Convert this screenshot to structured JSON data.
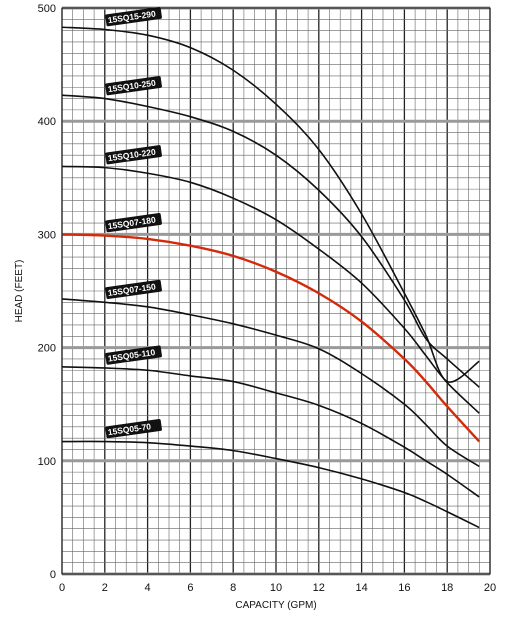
{
  "chart_data": {
    "type": "line",
    "title": "",
    "xlabel": "CAPACITY (GPM)",
    "ylabel": "HEAD (FEET)",
    "xlim": [
      0,
      20
    ],
    "ylim": [
      0,
      500
    ],
    "x_ticks": [
      0,
      2,
      4,
      6,
      8,
      10,
      12,
      14,
      16,
      18,
      20
    ],
    "y_ticks": [
      0,
      100,
      200,
      300,
      400,
      500
    ],
    "grid": true,
    "highlight_color": "#d42a0c",
    "line_color": "#111111",
    "series": [
      {
        "name": "15SQ15-290",
        "color": "#111111",
        "points": [
          [
            0,
            483
          ],
          [
            2,
            481
          ],
          [
            4,
            476
          ],
          [
            6,
            465
          ],
          [
            8,
            445
          ],
          [
            10,
            415
          ],
          [
            12,
            375
          ],
          [
            14,
            318
          ],
          [
            16,
            248
          ],
          [
            17,
            211
          ],
          [
            18,
            170
          ],
          [
            19.5,
            188
          ]
        ]
      },
      {
        "name": "15SQ10-250",
        "color": "#111111",
        "points": [
          [
            0,
            423
          ],
          [
            2,
            420
          ],
          [
            4,
            413
          ],
          [
            6,
            404
          ],
          [
            8,
            391
          ],
          [
            10,
            370
          ],
          [
            12,
            339
          ],
          [
            14,
            298
          ],
          [
            16,
            242
          ],
          [
            17,
            208
          ],
          [
            18,
            190
          ],
          [
            19.5,
            165
          ]
        ]
      },
      {
        "name": "15SQ10-220",
        "color": "#111111",
        "points": [
          [
            0,
            360
          ],
          [
            2,
            359
          ],
          [
            4,
            354
          ],
          [
            6,
            346
          ],
          [
            8,
            332
          ],
          [
            10,
            313
          ],
          [
            12,
            287
          ],
          [
            14,
            257
          ],
          [
            16,
            217
          ],
          [
            17,
            193
          ],
          [
            18,
            169
          ],
          [
            19.5,
            142
          ]
        ]
      },
      {
        "name": "15SQ07-180",
        "color": "#d42a0c",
        "points": [
          [
            0,
            300
          ],
          [
            2,
            299
          ],
          [
            4,
            296
          ],
          [
            6,
            290
          ],
          [
            8,
            281
          ],
          [
            10,
            267
          ],
          [
            12,
            248
          ],
          [
            14,
            223
          ],
          [
            16,
            190
          ],
          [
            17,
            170
          ],
          [
            18,
            148
          ],
          [
            19.5,
            117
          ]
        ]
      },
      {
        "name": "15SQ07-150",
        "color": "#111111",
        "points": [
          [
            0,
            243
          ],
          [
            2,
            240
          ],
          [
            4,
            236
          ],
          [
            6,
            229
          ],
          [
            8,
            221
          ],
          [
            10,
            211
          ],
          [
            12,
            199
          ],
          [
            14,
            177
          ],
          [
            16,
            150
          ],
          [
            17,
            132
          ],
          [
            18,
            113
          ],
          [
            19.5,
            95
          ]
        ]
      },
      {
        "name": "15SQ05-110",
        "color": "#111111",
        "points": [
          [
            0,
            183
          ],
          [
            2,
            182
          ],
          [
            4,
            180
          ],
          [
            6,
            175
          ],
          [
            8,
            170
          ],
          [
            10,
            160
          ],
          [
            12,
            149
          ],
          [
            14,
            133
          ],
          [
            16,
            112
          ],
          [
            17,
            100
          ],
          [
            18,
            88
          ],
          [
            19.5,
            68
          ]
        ]
      },
      {
        "name": "15SQ05-70",
        "color": "#111111",
        "points": [
          [
            0,
            117
          ],
          [
            2,
            117
          ],
          [
            4,
            116
          ],
          [
            6,
            113
          ],
          [
            8,
            109
          ],
          [
            10,
            102
          ],
          [
            12,
            94
          ],
          [
            14,
            84
          ],
          [
            16,
            72
          ],
          [
            17,
            64
          ],
          [
            18,
            55
          ],
          [
            19.5,
            41
          ]
        ]
      }
    ]
  }
}
